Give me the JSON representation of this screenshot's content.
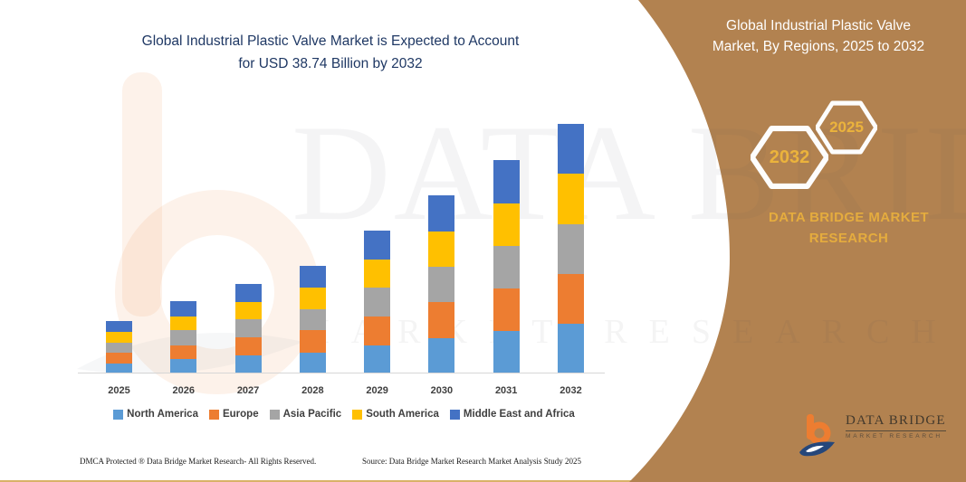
{
  "colors": {
    "panel_brown": "#B28250",
    "title_navy": "#1F3864",
    "gold": "#E5AC3E",
    "hex_gold": "#EBB33C",
    "text_dark": "#3F3F3F",
    "hex_stroke": "#FDFDFD"
  },
  "title": {
    "line1": "Global Industrial Plastic Valve Market is Expected to Account",
    "line2": "for USD 38.74 Billion by 2032"
  },
  "side_panel": {
    "header_line1": "Global Industrial Plastic Valve",
    "header_line2": "Market, By Regions, 2025 to 2032",
    "hexagons": [
      {
        "label": "2032"
      },
      {
        "label": "2025"
      }
    ],
    "brand_line1": "DATA BRIDGE MARKET",
    "brand_line2": "RESEARCH"
  },
  "watermark": {
    "big_text": "DATA BRIDGE",
    "sub_text": "MARKET RESEARCH"
  },
  "chart_data": {
    "type": "bar",
    "stacked": true,
    "title": "Global Industrial Plastic Valve Market is Expected to Account for USD 38.74 Billion by 2032",
    "unit": "USD Billion",
    "categories": [
      "2025",
      "2026",
      "2027",
      "2028",
      "2029",
      "2030",
      "2031",
      "2032"
    ],
    "series": [
      {
        "name": "North America",
        "color": "#5B9BD5",
        "values": [
          1.6,
          2.2,
          2.8,
          3.3,
          4.4,
          5.5,
          6.6,
          7.7
        ]
      },
      {
        "name": "Europe",
        "color": "#ED7D31",
        "values": [
          1.6,
          2.2,
          2.8,
          3.4,
          4.5,
          5.6,
          6.6,
          7.8
        ]
      },
      {
        "name": "Asia Pacific",
        "color": "#A5A5A5",
        "values": [
          1.6,
          2.3,
          2.8,
          3.3,
          4.4,
          5.5,
          6.6,
          7.7
        ]
      },
      {
        "name": "South America",
        "color": "#FFC000",
        "values": [
          1.6,
          2.2,
          2.7,
          3.3,
          4.4,
          5.5,
          6.6,
          7.8
        ]
      },
      {
        "name": "Middle East and Africa",
        "color": "#4472C4",
        "values": [
          1.7,
          2.3,
          2.8,
          3.4,
          4.5,
          5.6,
          6.7,
          7.74
        ]
      }
    ],
    "totals_estimated": [
      8.1,
      11.2,
      13.9,
      16.7,
      22.2,
      27.7,
      33.1,
      38.74
    ],
    "ylim": [
      0,
      40
    ],
    "grid": false,
    "axis_labels_shown": "x-only",
    "legend_position": "bottom"
  },
  "footer": {
    "left": "DMCA Protected ® Data Bridge Market Research-  All Rights Reserved.",
    "right": "Source: Data Bridge Market Research  Market Analysis Study 2025"
  },
  "logo": {
    "name": "DATA BRIDGE",
    "tagline": "MARKET RESEARCH"
  }
}
